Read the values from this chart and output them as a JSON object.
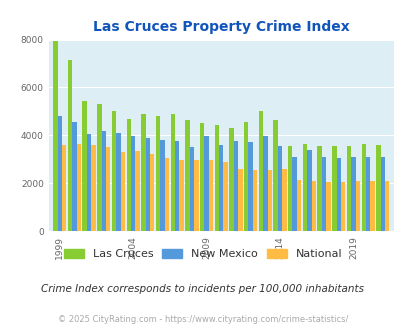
{
  "title": "Las Cruces Property Crime Index",
  "years": [
    1999,
    2001,
    2003,
    2005,
    2007,
    2009,
    2011,
    2013,
    2015,
    2017,
    2019,
    2021
  ],
  "all_years": [
    1999,
    2000,
    2001,
    2002,
    2003,
    2004,
    2005,
    2006,
    2007,
    2008,
    2009,
    2010,
    2011,
    2012,
    2013,
    2014,
    2015,
    2016,
    2017,
    2018,
    2019,
    2020,
    2021
  ],
  "lc_vals": [
    7950,
    7150,
    5450,
    5300,
    5000,
    4700,
    4900,
    4800,
    4900,
    4650,
    4500,
    4450,
    4300,
    4550,
    5000,
    4650,
    3550,
    3650,
    3550,
    3550,
    3550,
    3650,
    3600
  ],
  "nm_vals": [
    4800,
    4550,
    4050,
    4200,
    4100,
    3950,
    3900,
    3800,
    3750,
    3500,
    3950,
    3600,
    3750,
    3700,
    3950,
    3550,
    3100,
    3400,
    3100,
    3050,
    3100,
    3100,
    3100
  ],
  "nat_vals": [
    3600,
    3650,
    3600,
    3500,
    3300,
    3350,
    3200,
    3050,
    2950,
    2950,
    2950,
    2900,
    2600,
    2550,
    2550,
    2600,
    2150,
    2100,
    2050,
    2050,
    2100,
    2100,
    2100
  ],
  "lc_color": "#88cc33",
  "nm_color": "#5599dd",
  "nat_color": "#ffbb44",
  "plot_bg": "#ddeef5",
  "title_color": "#1155bb",
  "ylabel_max": 8000,
  "footnote1": "Crime Index corresponds to incidents per 100,000 inhabitants",
  "footnote2": "© 2025 CityRating.com - https://www.cityrating.com/crime-statistics/",
  "legend_labels": [
    "Las Cruces",
    "New Mexico",
    "National"
  ],
  "xtick_years": [
    1999,
    2004,
    2009,
    2014,
    2019
  ]
}
